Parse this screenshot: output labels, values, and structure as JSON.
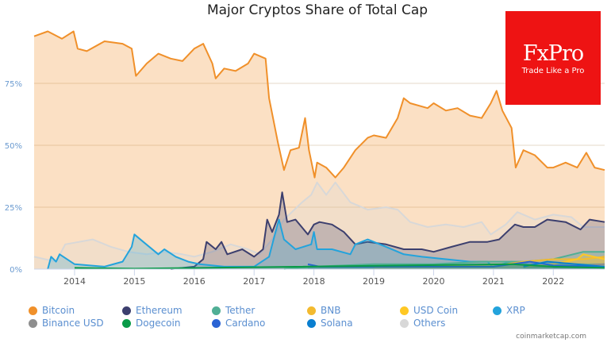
{
  "chart_data": {
    "type": "area",
    "title": "Major Cryptos Share of Total Cap",
    "xlabel": "",
    "ylabel": "",
    "xlim": [
      "2013-04-28",
      "2022-11-10"
    ],
    "ylim": [
      0,
      100
    ],
    "y_tick_labels": [
      "0%",
      "25%",
      "50%",
      "75%"
    ],
    "y_ticks": [
      0,
      25,
      50,
      75
    ],
    "x_tick_labels": [
      "2014",
      "2015",
      "2016",
      "2017",
      "2018",
      "2019",
      "2020",
      "2021",
      "2022"
    ],
    "grid": "horizontal",
    "legend_position": "bottom",
    "series": [
      {
        "name": "Bitcoin",
        "color": "#f0902a",
        "points": [
          [
            "2013-04-28",
            94
          ],
          [
            "2013-07-20",
            96
          ],
          [
            "2013-10-15",
            93
          ],
          [
            "2013-12-25",
            96
          ],
          [
            "2014-01-20",
            89
          ],
          [
            "2014-03-15",
            88
          ],
          [
            "2014-07-01",
            92
          ],
          [
            "2014-10-20",
            91
          ],
          [
            "2014-12-15",
            89
          ],
          [
            "2015-01-10",
            78
          ],
          [
            "2015-03-15",
            83
          ],
          [
            "2015-05-25",
            87
          ],
          [
            "2015-08-10",
            85
          ],
          [
            "2015-10-20",
            84
          ],
          [
            "2016-01-01",
            89
          ],
          [
            "2016-02-25",
            91
          ],
          [
            "2016-04-20",
            83
          ],
          [
            "2016-05-10",
            77
          ],
          [
            "2016-07-01",
            81
          ],
          [
            "2016-09-10",
            80
          ],
          [
            "2016-11-25",
            83
          ],
          [
            "2017-01-01",
            87
          ],
          [
            "2017-03-10",
            85
          ],
          [
            "2017-04-01",
            69
          ],
          [
            "2017-05-25",
            51
          ],
          [
            "2017-07-01",
            40
          ],
          [
            "2017-08-10",
            48
          ],
          [
            "2017-10-01",
            49
          ],
          [
            "2017-11-08",
            61
          ],
          [
            "2017-12-01",
            48
          ],
          [
            "2018-01-05",
            37
          ],
          [
            "2018-01-20",
            43
          ],
          [
            "2018-03-15",
            41
          ],
          [
            "2018-05-10",
            37
          ],
          [
            "2018-07-01",
            41
          ],
          [
            "2018-09-10",
            48
          ],
          [
            "2018-11-25",
            53
          ],
          [
            "2019-01-01",
            54
          ],
          [
            "2019-03-15",
            53
          ],
          [
            "2019-05-25",
            61
          ],
          [
            "2019-07-01",
            69
          ],
          [
            "2019-08-10",
            67
          ],
          [
            "2019-11-25",
            65
          ],
          [
            "2020-01-01",
            67
          ],
          [
            "2020-03-15",
            64
          ],
          [
            "2020-05-25",
            65
          ],
          [
            "2020-08-10",
            62
          ],
          [
            "2020-10-20",
            61
          ],
          [
            "2020-12-15",
            67
          ],
          [
            "2021-01-20",
            72
          ],
          [
            "2021-02-25",
            64
          ],
          [
            "2021-04-20",
            57
          ],
          [
            "2021-05-15",
            41
          ],
          [
            "2021-07-01",
            48
          ],
          [
            "2021-09-10",
            46
          ],
          [
            "2021-11-25",
            41
          ],
          [
            "2022-01-01",
            41
          ],
          [
            "2022-03-15",
            43
          ],
          [
            "2022-05-25",
            41
          ],
          [
            "2022-07-20",
            47
          ],
          [
            "2022-09-10",
            41
          ],
          [
            "2022-11-10",
            40
          ]
        ]
      },
      {
        "name": "Others",
        "color": "#d8d8d8",
        "points": [
          [
            "2013-04-28",
            5
          ],
          [
            "2013-09-10",
            3
          ],
          [
            "2013-11-05",
            10
          ],
          [
            "2014-04-20",
            12
          ],
          [
            "2014-08-10",
            9
          ],
          [
            "2014-11-25",
            7
          ],
          [
            "2015-03-15",
            6
          ],
          [
            "2015-07-01",
            7
          ],
          [
            "2015-10-20",
            6
          ],
          [
            "2016-01-01",
            5
          ],
          [
            "2016-04-20",
            7
          ],
          [
            "2016-08-10",
            10
          ],
          [
            "2016-11-25",
            8
          ],
          [
            "2017-02-05",
            6
          ],
          [
            "2017-04-20",
            12
          ],
          [
            "2017-07-01",
            20
          ],
          [
            "2017-10-20",
            27
          ],
          [
            "2017-12-15",
            30
          ],
          [
            "2018-01-20",
            35
          ],
          [
            "2018-03-15",
            30
          ],
          [
            "2018-05-10",
            35
          ],
          [
            "2018-08-10",
            27
          ],
          [
            "2018-11-25",
            24
          ],
          [
            "2019-03-15",
            25
          ],
          [
            "2019-05-25",
            24
          ],
          [
            "2019-08-10",
            19
          ],
          [
            "2019-11-25",
            17
          ],
          [
            "2020-03-15",
            18
          ],
          [
            "2020-07-01",
            17
          ],
          [
            "2020-10-20",
            19
          ],
          [
            "2020-12-15",
            14
          ],
          [
            "2021-03-15",
            18
          ],
          [
            "2021-05-25",
            23
          ],
          [
            "2021-09-10",
            20
          ],
          [
            "2022-01-01",
            22
          ],
          [
            "2022-04-20",
            21
          ],
          [
            "2022-07-01",
            17
          ],
          [
            "2022-11-10",
            17
          ]
        ]
      },
      {
        "name": "Ethereum",
        "color": "#3c3f6e",
        "points": [
          [
            "2015-08-10",
            0
          ],
          [
            "2016-01-01",
            1
          ],
          [
            "2016-02-25",
            4
          ],
          [
            "2016-03-15",
            11
          ],
          [
            "2016-05-10",
            8
          ],
          [
            "2016-06-15",
            11
          ],
          [
            "2016-07-20",
            6
          ],
          [
            "2016-10-20",
            8
          ],
          [
            "2017-01-01",
            5
          ],
          [
            "2017-02-25",
            8
          ],
          [
            "2017-03-20",
            20
          ],
          [
            "2017-04-20",
            15
          ],
          [
            "2017-06-01",
            22
          ],
          [
            "2017-06-20",
            31
          ],
          [
            "2017-07-20",
            19
          ],
          [
            "2017-09-10",
            20
          ],
          [
            "2017-11-25",
            14
          ],
          [
            "2018-01-01",
            18
          ],
          [
            "2018-02-05",
            19
          ],
          [
            "2018-04-20",
            18
          ],
          [
            "2018-07-01",
            15
          ],
          [
            "2018-09-10",
            10
          ],
          [
            "2018-11-25",
            11
          ],
          [
            "2019-03-15",
            10
          ],
          [
            "2019-07-01",
            8
          ],
          [
            "2019-10-20",
            8
          ],
          [
            "2020-01-01",
            7
          ],
          [
            "2020-04-20",
            9
          ],
          [
            "2020-08-10",
            11
          ],
          [
            "2020-11-25",
            11
          ],
          [
            "2021-02-05",
            12
          ],
          [
            "2021-05-10",
            18
          ],
          [
            "2021-07-01",
            17
          ],
          [
            "2021-09-10",
            17
          ],
          [
            "2021-11-25",
            20
          ],
          [
            "2022-03-15",
            19
          ],
          [
            "2022-06-15",
            16
          ],
          [
            "2022-08-10",
            20
          ],
          [
            "2022-11-10",
            19
          ]
        ]
      },
      {
        "name": "XRP",
        "color": "#23a3dc",
        "points": [
          [
            "2013-07-20",
            0
          ],
          [
            "2013-08-10",
            5
          ],
          [
            "2013-09-10",
            3
          ],
          [
            "2013-10-01",
            6
          ],
          [
            "2014-01-01",
            2
          ],
          [
            "2014-07-01",
            1
          ],
          [
            "2014-10-20",
            3
          ],
          [
            "2014-12-15",
            9
          ],
          [
            "2015-01-01",
            14
          ],
          [
            "2015-02-25",
            11
          ],
          [
            "2015-05-25",
            6
          ],
          [
            "2015-07-01",
            8
          ],
          [
            "2015-09-10",
            5
          ],
          [
            "2015-11-25",
            3
          ],
          [
            "2016-02-05",
            2
          ],
          [
            "2016-07-01",
            1
          ],
          [
            "2017-01-01",
            1
          ],
          [
            "2017-04-01",
            5
          ],
          [
            "2017-05-10",
            15
          ],
          [
            "2017-06-01",
            20
          ],
          [
            "2017-07-01",
            12
          ],
          [
            "2017-09-10",
            8
          ],
          [
            "2017-12-15",
            10
          ],
          [
            "2018-01-01",
            15
          ],
          [
            "2018-01-20",
            8
          ],
          [
            "2018-04-20",
            8
          ],
          [
            "2018-08-10",
            6
          ],
          [
            "2018-09-10",
            10
          ],
          [
            "2018-11-25",
            12
          ],
          [
            "2019-03-15",
            9
          ],
          [
            "2019-07-01",
            6
          ],
          [
            "2019-10-20",
            5
          ],
          [
            "2020-03-15",
            4
          ],
          [
            "2020-08-10",
            3
          ],
          [
            "2020-11-25",
            3
          ],
          [
            "2020-12-25",
            1
          ],
          [
            "2021-04-20",
            3
          ],
          [
            "2021-08-10",
            2
          ],
          [
            "2022-01-01",
            2
          ],
          [
            "2022-11-10",
            2
          ]
        ]
      },
      {
        "name": "Tether",
        "color": "#50af95",
        "points": [
          [
            "2017-07-01",
            0.1
          ],
          [
            "2018-01-01",
            1
          ],
          [
            "2019-01-01",
            2
          ],
          [
            "2020-01-01",
            2
          ],
          [
            "2020-10-20",
            3
          ],
          [
            "2021-07-01",
            3
          ],
          [
            "2022-01-01",
            4
          ],
          [
            "2022-07-01",
            7
          ],
          [
            "2022-11-10",
            7
          ]
        ]
      },
      {
        "name": "BNB",
        "color": "#f3ba2f",
        "points": [
          [
            "2019-01-01",
            1
          ],
          [
            "2021-03-15",
            2
          ],
          [
            "2021-07-01",
            3
          ],
          [
            "2022-01-01",
            4
          ],
          [
            "2022-07-01",
            4
          ],
          [
            "2022-11-10",
            5
          ]
        ]
      },
      {
        "name": "USD Coin",
        "color": "#ffc824",
        "points": [
          [
            "2021-07-01",
            1
          ],
          [
            "2022-01-01",
            2
          ],
          [
            "2022-05-25",
            4
          ],
          [
            "2022-07-01",
            6
          ],
          [
            "2022-11-10",
            4
          ]
        ]
      },
      {
        "name": "Binance USD",
        "color": "#8e8e8e",
        "points": [
          [
            "2022-01-01",
            0.8
          ],
          [
            "2022-11-10",
            2
          ]
        ]
      },
      {
        "name": "Cardano",
        "color": "#2a63d4",
        "points": [
          [
            "2017-11-25",
            2
          ],
          [
            "2018-02-05",
            1
          ],
          [
            "2021-01-01",
            1
          ],
          [
            "2021-08-10",
            3
          ],
          [
            "2022-01-01",
            1.5
          ],
          [
            "2022-11-10",
            1
          ]
        ]
      },
      {
        "name": "Solana",
        "color": "#0a7fd0",
        "points": [
          [
            "2021-07-01",
            1
          ],
          [
            "2021-11-25",
            3
          ],
          [
            "2022-11-10",
            1
          ]
        ]
      },
      {
        "name": "Dogecoin",
        "color": "#0a9b48",
        "points": [
          [
            "2014-01-01",
            0.5
          ],
          [
            "2015-01-01",
            0.2
          ],
          [
            "2021-04-20",
            2
          ],
          [
            "2022-01-01",
            1
          ],
          [
            "2022-11-10",
            0.5
          ]
        ]
      }
    ]
  },
  "legend": [
    {
      "label": "Bitcoin",
      "color": "#f0902a"
    },
    {
      "label": "Ethereum",
      "color": "#3c3f6e"
    },
    {
      "label": "Tether",
      "color": "#50af95"
    },
    {
      "label": "BNB",
      "color": "#f3ba2f"
    },
    {
      "label": "USD Coin",
      "color": "#ffc824"
    },
    {
      "label": "XRP",
      "color": "#23a3dc"
    },
    {
      "label": "Binance USD",
      "color": "#8e8e8e"
    },
    {
      "label": "Dogecoin",
      "color": "#0a9b48"
    },
    {
      "label": "Cardano",
      "color": "#2a63d4"
    },
    {
      "label": "Solana",
      "color": "#0a7fd0"
    },
    {
      "label": "Others",
      "color": "#d8d8d8"
    }
  ],
  "credit": "coinmarketcap.com",
  "logo": {
    "brand": "FxPro",
    "tagline": "Trade Like a Pro",
    "color": "#ee1313"
  }
}
